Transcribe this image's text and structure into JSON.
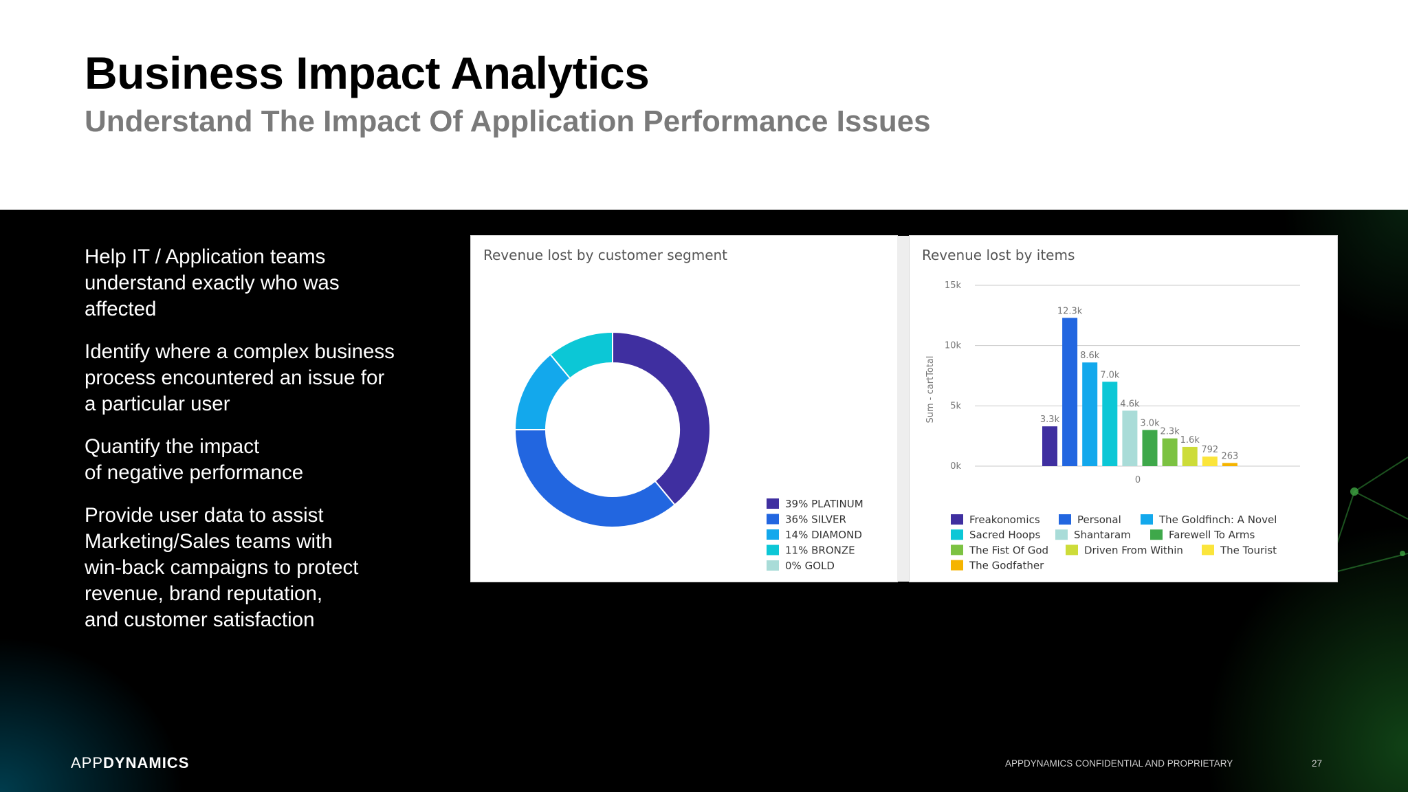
{
  "slide": {
    "title": "Business Impact Analytics",
    "subtitle": "Understand The Impact Of Application Performance Issues",
    "bullets": [
      "Help IT / Application  teams\nunderstand exactly who was\naffected",
      "Identify where a complex business\nprocess encountered an issue for\n a particular user",
      "Quantify the impact\nof negative performance",
      "Provide user data to assist\nMarketing/Sales teams with\nwin-back campaigns to protect\nrevenue, brand reputation,\nand customer satisfaction"
    ],
    "logo_light": "APP",
    "logo_bold": "DYNAMICS",
    "footer_confidential": "APPDYNAMICS  CONFIDENTIAL AND PROPRIETARY",
    "page_number": "27"
  },
  "chart_data": [
    {
      "type": "pie",
      "variant": "donut",
      "title": "Revenue lost by customer segment",
      "legend_position": "bottom-right",
      "slices": [
        {
          "label": "39% PLATINUM",
          "value": 39,
          "color": "#3f2fa0"
        },
        {
          "label": "36% SILVER",
          "value": 36,
          "color": "#2266e0"
        },
        {
          "label": "14% DIAMOND",
          "value": 14,
          "color": "#13a8ec"
        },
        {
          "label": "11% BRONZE",
          "value": 11,
          "color": "#0cc7d6"
        },
        {
          "label": "0% GOLD",
          "value": 0,
          "color": "#a9dcd8"
        }
      ]
    },
    {
      "type": "bar",
      "title": "Revenue lost by items",
      "ylabel": "Sum - cartTotal",
      "xlabel": "",
      "ylim": [
        0,
        15000
      ],
      "yticks": [
        "0k",
        "5k",
        "10k",
        "15k"
      ],
      "x_tick_label": "0",
      "grid": true,
      "legend_position": "bottom",
      "categories": [
        "Freakonomics",
        "Personal",
        "The Goldfinch: A Novel",
        "Sacred Hoops",
        "Shantaram",
        "Farewell To Arms",
        "The Fist Of God",
        "Driven From Within",
        "The Tourist",
        "The Godfather"
      ],
      "values": [
        3300,
        12300,
        8600,
        7000,
        4600,
        3000,
        2300,
        1600,
        792,
        263
      ],
      "value_labels": [
        "3.3k",
        "12.3k",
        "8.6k",
        "7.0k",
        "4.6k",
        "3.0k",
        "2.3k",
        "1.6k",
        "792",
        "263"
      ],
      "colors": [
        "#3f2fa0",
        "#2266e0",
        "#13a8ec",
        "#0cc7d6",
        "#a9dcd8",
        "#3ea84a",
        "#7cc242",
        "#cddc39",
        "#fbe53b",
        "#f5b400"
      ]
    }
  ]
}
